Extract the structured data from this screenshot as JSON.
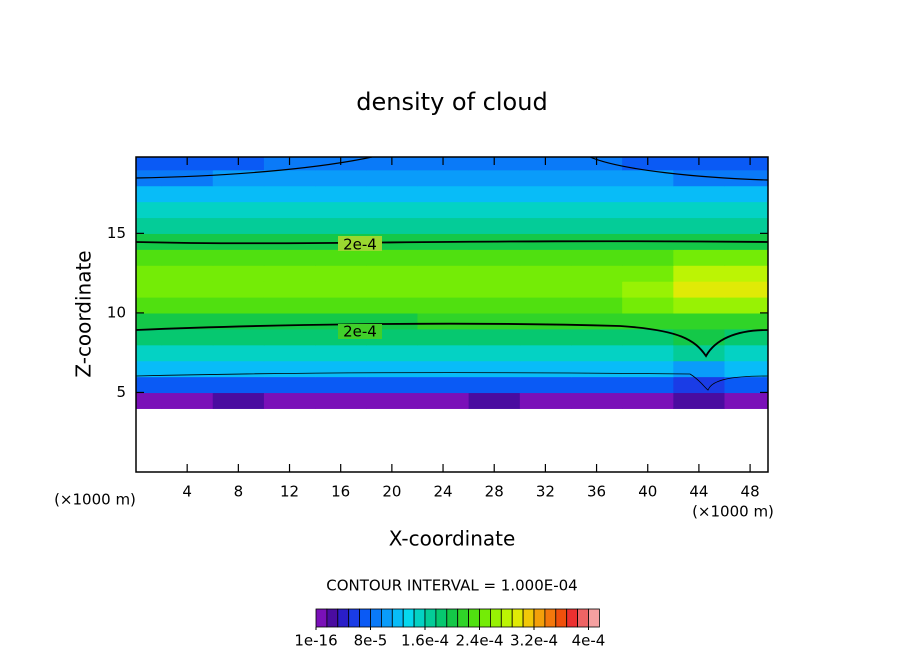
{
  "chart_data": {
    "type": "contour",
    "title": "density of cloud",
    "x_label": "X-coordinate",
    "y_label": "Z-coordinate",
    "x_unit_left": "(×1000 m)",
    "x_unit_right": "(×1000 m)",
    "contour_interval": "CONTOUR INTERVAL = 1.000E-04",
    "xlim": [
      0,
      49.4
    ],
    "ylim": [
      0,
      19.8
    ],
    "xticks": [
      4,
      8,
      12,
      16,
      20,
      24,
      28,
      32,
      36,
      40,
      44,
      48
    ],
    "yticks": [
      5,
      10,
      15
    ],
    "x": [
      0,
      4,
      8,
      12,
      16,
      20,
      24,
      28,
      32,
      36,
      40,
      44,
      48
    ],
    "y": [
      4.5,
      5.5,
      6.5,
      7.5,
      8.5,
      9.5,
      10.5,
      11.5,
      12.5,
      13.5,
      14.5,
      15.5,
      16.5,
      17.5,
      18.5,
      19.5
    ],
    "z": [
      [
        1e-05,
        1e-05,
        2e-05,
        1e-05,
        1e-05,
        1e-05,
        1e-05,
        2e-05,
        1e-05,
        1e-05,
        1e-05,
        3e-05,
        1e-05
      ],
      [
        7e-05,
        6.5e-05,
        7e-05,
        7e-05,
        6.5e-05,
        7e-05,
        7e-05,
        6.5e-05,
        7e-05,
        7e-05,
        7e-05,
        5e-05,
        7e-05
      ],
      [
        0.00012,
        0.000115,
        0.00012,
        0.00012,
        0.00012,
        0.00012,
        0.00012,
        0.00012,
        0.00012,
        0.00012,
        0.00012,
        0.00011,
        0.00012
      ],
      [
        0.00015,
        0.00015,
        0.00015,
        0.00015,
        0.00015,
        0.00015,
        0.00015,
        0.00015,
        0.00015,
        0.00015,
        0.00015,
        0.00017,
        0.00015
      ],
      [
        0.00018,
        0.00018,
        0.00018,
        0.00018,
        0.00018,
        0.00018,
        0.00018,
        0.00018,
        0.00018,
        0.00018,
        0.00018,
        0.000205,
        0.00018
      ],
      [
        0.000205,
        0.000205,
        0.000205,
        0.000205,
        0.000205,
        0.000205,
        0.00021,
        0.00021,
        0.00021,
        0.00021,
        0.00021,
        0.00022,
        0.00021
      ],
      [
        0.00023,
        0.00023,
        0.00023,
        0.00023,
        0.00023,
        0.00023,
        0.00023,
        0.00023,
        0.00023,
        0.00023,
        0.00024,
        0.00027,
        0.00027
      ],
      [
        0.00025,
        0.00025,
        0.000245,
        0.00024,
        0.00024,
        0.00024,
        0.000245,
        0.00025,
        0.00025,
        0.00025,
        0.00026,
        0.000295,
        0.000295
      ],
      [
        0.000245,
        0.000245,
        0.000245,
        0.000245,
        0.000245,
        0.000245,
        0.000245,
        0.000245,
        0.000245,
        0.00025,
        0.000255,
        0.00028,
        0.00028
      ],
      [
        0.00023,
        0.00023,
        0.00023,
        0.00023,
        0.00023,
        0.00023,
        0.00023,
        0.00023,
        0.00023,
        0.00023,
        0.000235,
        0.00024,
        0.00024
      ],
      [
        0.0002,
        0.0002,
        0.0002,
        0.0002,
        0.0002,
        0.0002,
        0.0002,
        0.0002,
        0.000205,
        0.000205,
        0.000205,
        0.000205,
        0.0002
      ],
      [
        0.000175,
        0.000175,
        0.000175,
        0.000175,
        0.000175,
        0.000175,
        0.000175,
        0.000175,
        0.000175,
        0.000175,
        0.000175,
        0.000175,
        0.000175
      ],
      [
        0.00015,
        0.00015,
        0.00015,
        0.00015,
        0.00015,
        0.00015,
        0.00015,
        0.00015,
        0.00015,
        0.00015,
        0.00015,
        0.00015,
        0.00015
      ],
      [
        0.00012,
        0.00012,
        0.00012,
        0.000125,
        0.000125,
        0.000125,
        0.000125,
        0.000125,
        0.000125,
        0.000125,
        0.00012,
        0.00012,
        0.00012
      ],
      [
        9.5e-05,
        9.5e-05,
        0.0001,
        0.0001,
        0.0001,
        0.0001,
        0.0001,
        0.0001,
        0.0001,
        0.0001,
        0.0001,
        9.5e-05,
        9.5e-05
      ],
      [
        7e-05,
        7e-05,
        7.5e-05,
        8e-05,
        8.5e-05,
        8.5e-05,
        8.5e-05,
        8.5e-05,
        8.5e-05,
        8e-05,
        7.5e-05,
        7e-05,
        7e-05
      ]
    ],
    "levels": [
      1e-16,
      1.6e-05,
      3.2e-05,
      4.8e-05,
      6.4e-05,
      8e-05,
      9.6e-05,
      0.000112,
      0.000128,
      0.000144,
      0.00016,
      0.000176,
      0.000192,
      0.000208,
      0.000224,
      0.00024,
      0.000256,
      0.000272,
      0.000288,
      0.000304,
      0.00032,
      0.000336,
      0.000352,
      0.000368,
      0.000384,
      0.0004
    ],
    "colors": [
      "#7a10b8",
      "#4a0ca0",
      "#2a1ec8",
      "#1a3ce6",
      "#0a5af5",
      "#0a7af8",
      "#0a9cfa",
      "#08bcf8",
      "#06d8ee",
      "#04d2c4",
      "#04cc98",
      "#06c870",
      "#14c848",
      "#30d428",
      "#50e010",
      "#74ec06",
      "#98f204",
      "#bcf404",
      "#e0ea06",
      "#f2c808",
      "#f4a00a",
      "#f4780c",
      "#f0500c",
      "#ec3030",
      "#ee6464",
      "#f4a0a0"
    ],
    "colorbar_ticks": [
      {
        "value": 1e-16,
        "label": "1e-16"
      },
      {
        "value": 8e-05,
        "label": "8e-5"
      },
      {
        "value": 0.00016,
        "label": "1.6e-4"
      },
      {
        "value": 0.00024,
        "label": "2.4e-4"
      },
      {
        "value": 0.00032,
        "label": "3.2e-4"
      },
      {
        "value": 0.0004,
        "label": "4e-4"
      }
    ],
    "contour_labels": [
      {
        "value": 0.0002,
        "label": "2e-4"
      },
      {
        "value": 0.0002,
        "label": "2e-4"
      }
    ]
  }
}
